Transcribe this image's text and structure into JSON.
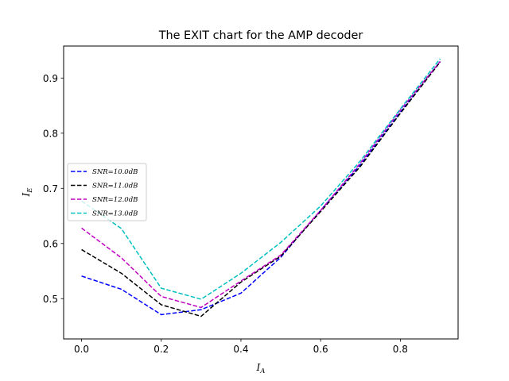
{
  "chart_data": {
    "type": "line",
    "title": "The EXIT chart for the AMP decoder",
    "xlabel_main": "I",
    "xlabel_sub": "A",
    "ylabel_main": "I",
    "ylabel_sub": "E",
    "xlim": [
      -0.045,
      0.945
    ],
    "ylim": [
      0.427,
      0.958
    ],
    "xticks": [
      0.0,
      0.2,
      0.4,
      0.6,
      0.8
    ],
    "xtick_labels": [
      "0.0",
      "0.2",
      "0.4",
      "0.6",
      "0.8"
    ],
    "yticks": [
      0.5,
      0.6,
      0.7,
      0.8,
      0.9
    ],
    "ytick_labels": [
      "0.5",
      "0.6",
      "0.7",
      "0.8",
      "0.9"
    ],
    "grid": false,
    "legend_position": "center-left",
    "x": [
      0.0,
      0.1,
      0.2,
      0.3,
      0.4,
      0.5,
      0.6,
      0.7,
      0.8,
      0.9
    ],
    "series": [
      {
        "name": "SNR=10.0dB",
        "color": "#0000ff",
        "values": [
          0.541,
          0.517,
          0.471,
          0.48,
          0.51,
          0.575,
          0.66,
          0.743,
          0.838,
          0.93
        ]
      },
      {
        "name": "SNR=11.0dB",
        "color": "#000000",
        "values": [
          0.589,
          0.546,
          0.489,
          0.468,
          0.53,
          0.577,
          0.658,
          0.74,
          0.836,
          0.929
        ]
      },
      {
        "name": "SNR=12.0dB",
        "color": "#bf00bf",
        "values": [
          0.628,
          0.574,
          0.504,
          0.484,
          0.532,
          0.579,
          0.66,
          0.746,
          0.842,
          0.93
        ]
      },
      {
        "name": "SNR=13.0dB",
        "color": "#00bfbf",
        "values": [
          0.677,
          0.627,
          0.519,
          0.499,
          0.546,
          0.602,
          0.668,
          0.75,
          0.844,
          0.935
        ]
      }
    ]
  }
}
